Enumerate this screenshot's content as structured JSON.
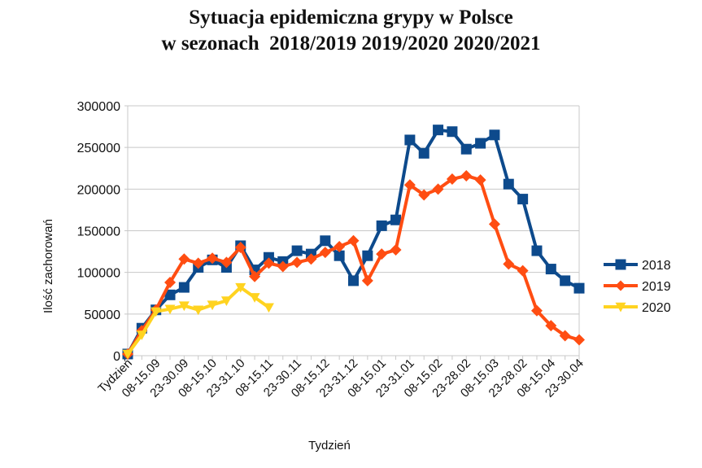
{
  "chart_data": {
    "type": "line",
    "title": "Sytuacja epidemiczna grypy w Polsce",
    "subtitle": "w sezonach  2018/2019 2019/2020 2020/2021",
    "xlabel": "Tydzień",
    "ylabel": "Ilość zachorowań",
    "ylim": [
      0,
      300000
    ],
    "yticks": [
      "0",
      "50000",
      "100000",
      "150000",
      "200000",
      "250000",
      "300000"
    ],
    "grid": true,
    "legend": "right",
    "x_tick_labels": [
      "Tydzień",
      "08-15.09",
      "23-30.09",
      "08-15.10",
      "23-31.10",
      "08-15.11",
      "23-30.11",
      "08-15.12",
      "23-31.12",
      "08-15.01",
      "23-31.01",
      "08-15.02",
      "23-28.02",
      "08-15.03",
      "23-28.02",
      "08-15.04",
      "23-30.04"
    ],
    "point_count": 33,
    "series": [
      {
        "name": "2018",
        "color": "#0d4a8c",
        "marker": "square",
        "values": [
          2000,
          33000,
          55000,
          73000,
          82000,
          106000,
          115000,
          106000,
          132000,
          103000,
          118000,
          113000,
          126000,
          122000,
          138000,
          120000,
          90000,
          120000,
          156000,
          163000,
          259000,
          243000,
          271000,
          269000,
          248000,
          255000,
          265000,
          206000,
          188000,
          126000,
          104000,
          90000,
          81000
        ]
      },
      {
        "name": "2019",
        "color": "#ff4d12",
        "marker": "diamond",
        "values": [
          2000,
          30000,
          55000,
          88000,
          116000,
          111000,
          117000,
          112000,
          130000,
          95000,
          111000,
          107000,
          112000,
          116000,
          124000,
          131000,
          138000,
          90000,
          122000,
          127000,
          205000,
          193000,
          200000,
          212000,
          216000,
          211000,
          158000,
          110000,
          102000,
          54000,
          36000,
          24000,
          19000
        ]
      },
      {
        "name": "2020",
        "color": "#ffd320",
        "marker": "triangle-down",
        "values": [
          2000,
          25000,
          53000,
          56000,
          60000,
          55000,
          61000,
          66000,
          82000,
          70000,
          58000
        ]
      }
    ]
  }
}
